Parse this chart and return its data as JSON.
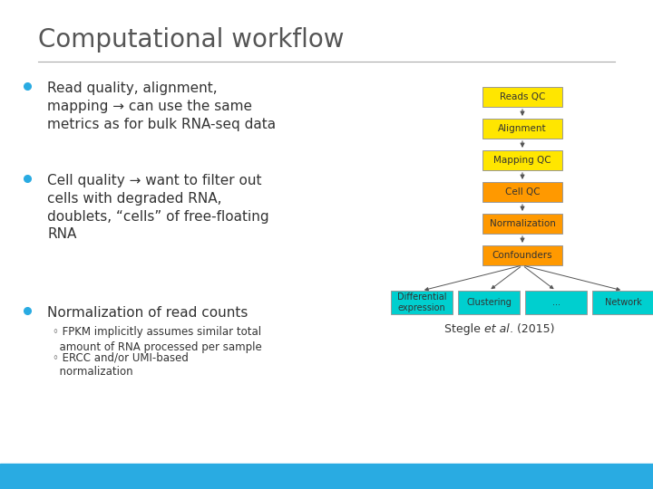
{
  "title": "Computational workflow",
  "bg_color": "#ffffff",
  "bottom_bar_color": "#29ABE2",
  "title_color": "#555555",
  "bullet_color": "#29ABE2",
  "bullet_points": [
    {
      "text": "Read quality, alignment,\nmapping → can use the same\nmetrics as for bulk RNA-seq data",
      "sub": [],
      "large": true
    },
    {
      "text": "Cell quality → want to filter out\ncells with degraded RNA,\ndoublets, “cells” of free-floating\nRNA",
      "sub": [],
      "large": true
    },
    {
      "text": "Normalization of read counts",
      "sub": [
        "FPKM implicitly assumes similar total\namount of RNA processed per sample",
        "ERCC and/or UMI-based\nnormalization"
      ],
      "large": true
    }
  ],
  "workflow_boxes": [
    {
      "label": "Reads QC",
      "color": "#FFE600",
      "text_color": "#333333"
    },
    {
      "label": "Alignment",
      "color": "#FFE600",
      "text_color": "#333333"
    },
    {
      "label": "Mapping QC",
      "color": "#FFE600",
      "text_color": "#333333"
    },
    {
      "label": "Cell QC",
      "color": "#FF9900",
      "text_color": "#333333"
    },
    {
      "label": "Normalization",
      "color": "#FF9900",
      "text_color": "#333333"
    },
    {
      "label": "Confounders",
      "color": "#FF9900",
      "text_color": "#333333"
    }
  ],
  "output_boxes": [
    {
      "label": "Differential\nexpression",
      "color": "#00CFCF",
      "text_color": "#333333"
    },
    {
      "label": "Clustering",
      "color": "#00CFCF",
      "text_color": "#333333"
    },
    {
      "label": "...",
      "color": "#00CFCF",
      "text_color": "#333333"
    },
    {
      "label": "Network",
      "color": "#00CFCF",
      "text_color": "#333333"
    }
  ],
  "citation_normal": "Stegle ",
  "citation_italic": "et al",
  "citation_rest": ". (2015)"
}
